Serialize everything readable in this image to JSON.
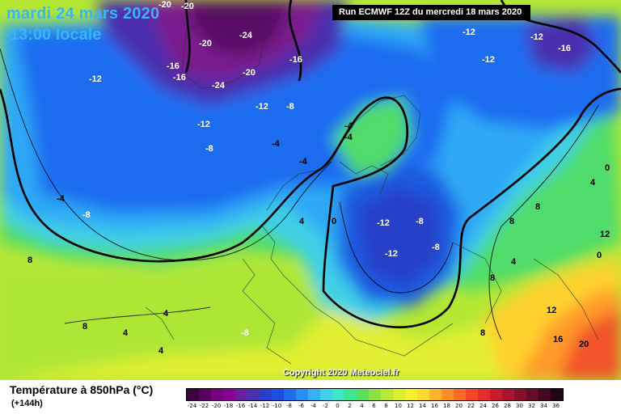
{
  "header": {
    "date": "mardi 24 mars 2020",
    "local_time": "13:00 locale",
    "run": "Run ECMWF 12Z du mercredi 18 mars 2020"
  },
  "map": {
    "copyright": "Copyright 2020 Meteociel.fr",
    "labels": [
      "-20",
      "-20",
      "-24",
      "-20",
      "-16",
      "-16",
      "-12",
      "-24",
      "-20",
      "-16",
      "-12",
      "-8",
      "-12",
      "-8",
      "-4",
      "-4",
      "-4",
      "-8",
      "-4",
      "-12",
      "-12",
      "-16",
      "-12",
      "0",
      "-12",
      "-8",
      "-12",
      "-8",
      "-4",
      "4",
      "0",
      "8",
      "8",
      "4",
      "4",
      "4",
      "8",
      "-8",
      "8",
      "12",
      "8",
      "8",
      "4",
      "12",
      "16",
      "20",
      "0",
      "4"
    ]
  },
  "legend": {
    "title": "Température à 850hPa (°C)",
    "lead_time": "(+144h)",
    "ticks": [
      "-24",
      "-22",
      "-20",
      "-18",
      "-16",
      "-14",
      "-12",
      "-10",
      "-8",
      "-6",
      "-4",
      "-2",
      "0",
      "2",
      "4",
      "6",
      "8",
      "10",
      "12",
      "14",
      "16",
      "18",
      "20",
      "22",
      "24",
      "26",
      "28",
      "30",
      "32",
      "34",
      "36"
    ],
    "colors": [
      "#3d0040",
      "#5a0060",
      "#780080",
      "#8a0095",
      "#6a1fa0",
      "#4a2fae",
      "#2a3fc8",
      "#1c4fe0",
      "#1d6ff0",
      "#2a8ff6",
      "#36b0f7",
      "#3fd0ee",
      "#3fe6c8",
      "#3ee68f",
      "#5ade5a",
      "#8ae33f",
      "#b6ea34",
      "#dcef2f",
      "#f4f02e",
      "#ffd92e",
      "#ffb52c",
      "#ff8f2a",
      "#ff6a28",
      "#f74826",
      "#e42d2a",
      "#c81c2c",
      "#aa142e",
      "#88102c",
      "#660c28",
      "#440820",
      "#220414"
    ]
  }
}
